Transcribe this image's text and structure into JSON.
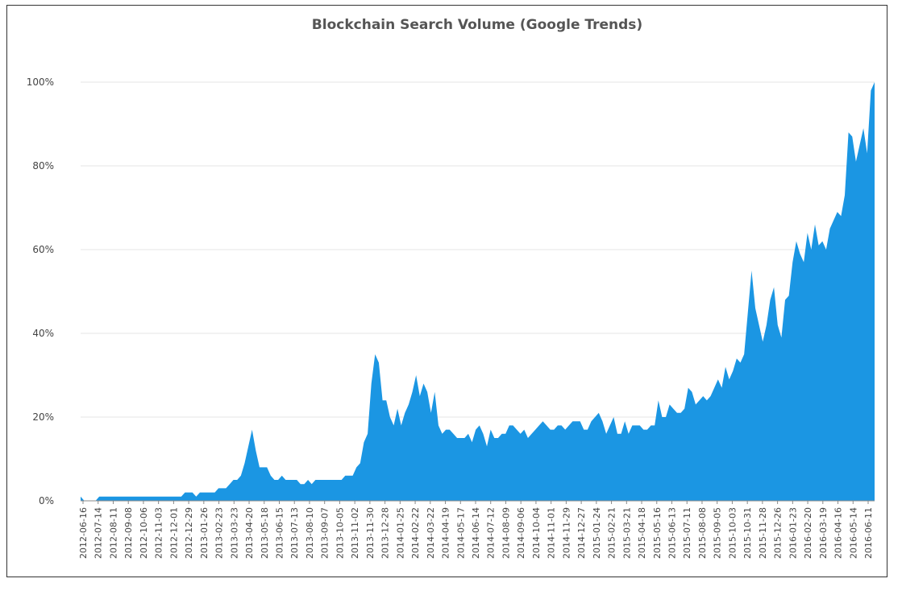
{
  "chart_data": {
    "type": "area",
    "title": "Blockchain Search Volume (Google Trends)",
    "xlabel": "",
    "ylabel": "",
    "ylim": [
      0,
      100
    ],
    "y_ticks": [
      "0%",
      "20%",
      "40%",
      "60%",
      "80%",
      "100%"
    ],
    "y_tick_values": [
      0,
      20,
      40,
      60,
      80,
      100
    ],
    "grid": true,
    "legend": "none",
    "colors": {
      "area": "#1b96e3",
      "grid": "#e6e6e6",
      "axis": "#888888"
    },
    "x_tick_labels": [
      "2012-06-16",
      "2012-07-14",
      "2012-08-11",
      "2012-09-08",
      "2012-10-06",
      "2012-11-03",
      "2012-12-01",
      "2012-12-29",
      "2013-01-26",
      "2013-02-23",
      "2013-03-23",
      "2013-04-20",
      "2013-05-18",
      "2013-06-15",
      "2013-07-13",
      "2013-08-10",
      "2013-09-07",
      "2013-10-05",
      "2013-11-02",
      "2013-11-30",
      "2013-12-28",
      "2014-01-25",
      "2014-02-22",
      "2014-03-22",
      "2014-04-19",
      "2014-05-17",
      "2014-06-14",
      "2014-07-12",
      "2014-08-09",
      "2014-09-06",
      "2014-10-04",
      "2014-11-01",
      "2014-11-29",
      "2014-12-27",
      "2015-01-24",
      "2015-02-21",
      "2015-03-21",
      "2015-04-18",
      "2015-05-16",
      "2015-06-13",
      "2015-07-11",
      "2015-08-08",
      "2015-09-05",
      "2015-10-03",
      "2015-10-31",
      "2015-11-28",
      "2015-12-26",
      "2016-01-23",
      "2016-02-20",
      "2016-03-19",
      "2016-04-16",
      "2016-05-14",
      "2016-06-11"
    ],
    "series": [
      {
        "values": [
          1,
          0,
          0,
          0,
          0,
          1,
          1,
          1,
          1,
          1,
          1,
          1,
          1,
          1,
          1,
          1,
          1,
          1,
          1,
          1,
          1,
          1,
          1,
          1,
          1,
          1,
          1,
          1,
          2,
          2,
          2,
          1,
          2,
          2,
          2,
          2,
          2,
          3,
          3,
          3,
          4,
          5,
          5,
          6,
          9,
          13,
          17,
          12,
          8,
          8,
          8,
          6,
          5,
          5,
          6,
          5,
          5,
          5,
          5,
          4,
          4,
          5,
          4,
          5,
          5,
          5,
          5,
          5,
          5,
          5,
          5,
          6,
          6,
          6,
          8,
          9,
          14,
          16,
          28,
          35,
          33,
          24,
          24,
          20,
          18,
          22,
          18,
          21,
          23,
          26,
          30,
          25,
          28,
          26,
          21,
          26,
          18,
          16,
          17,
          17,
          16,
          15,
          15,
          15,
          16,
          14,
          17,
          18,
          16,
          13,
          17,
          15,
          15,
          16,
          16,
          18,
          18,
          17,
          16,
          17,
          15,
          16,
          17,
          18,
          19,
          18,
          17,
          17,
          18,
          18,
          17,
          18,
          19,
          19,
          19,
          17,
          17,
          19,
          20,
          21,
          19,
          16,
          18,
          20,
          16,
          16,
          19,
          16,
          18,
          18,
          18,
          17,
          17,
          18,
          18,
          24,
          20,
          20,
          23,
          22,
          21,
          21,
          22,
          27,
          26,
          23,
          24,
          25,
          24,
          25,
          27,
          29,
          27,
          32,
          29,
          31,
          34,
          33,
          35,
          45,
          55,
          46,
          42,
          38,
          42,
          48,
          51,
          42,
          39,
          48,
          49,
          57,
          62,
          59,
          57,
          64,
          60,
          66,
          61,
          62,
          60,
          65,
          67,
          69,
          68,
          73,
          88,
          87,
          81,
          85,
          89,
          83,
          98,
          100
        ]
      }
    ]
  }
}
